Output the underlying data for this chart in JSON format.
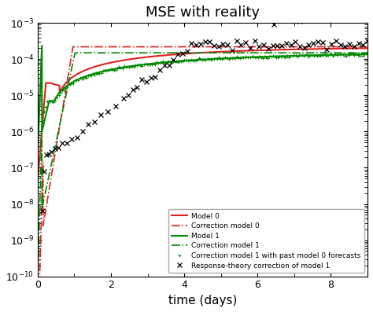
{
  "title": "MSE with reality",
  "xlabel": "time (days)",
  "xlim": [
    0,
    9
  ],
  "ylim": [
    1e-10,
    0.001
  ],
  "model0_color": "#dd2222",
  "model1_color": "#008800",
  "scatter_x_color": "black",
  "legend_loc": "lower center",
  "legend_entries": [
    "Model 0",
    "Correction model 0",
    "Model 1",
    "Correction model 1",
    "Correction model 1 with past model 0 forecasts",
    "Response-theory correction of model 1"
  ]
}
